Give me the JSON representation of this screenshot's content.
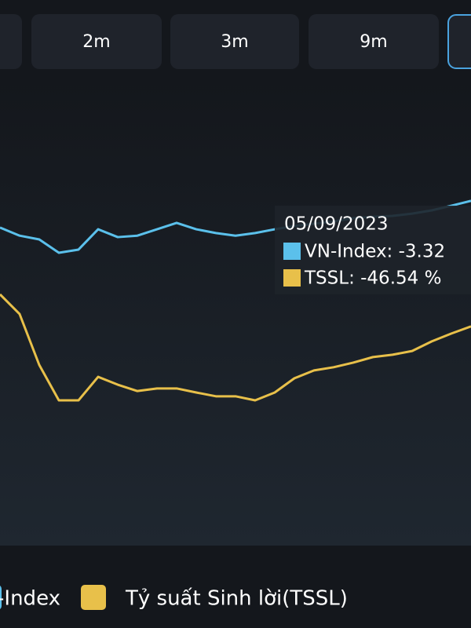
{
  "tabs": [
    "2m",
    "3m",
    "9m"
  ],
  "chart_data": {
    "type": "line",
    "ylim": [
      -122,
      38
    ],
    "series": [
      {
        "name": "VN-Index",
        "color": "#5bc0eb",
        "values": [
          -12.5,
          -15.3,
          -16.6,
          -21.2,
          -20.1,
          -13.1,
          -15.8,
          -15.3,
          -13.1,
          -10.9,
          -13.1,
          -14.4,
          -15.3,
          -14.4,
          -13.1,
          -12.0,
          -11.2,
          -10.4,
          -9.3,
          -8.8,
          -8.5,
          -7.7,
          -6.6,
          -5.0,
          -3.32
        ]
      },
      {
        "name": "Tỷ suất Sinh lời(TSSL)",
        "color": "#e8c04a",
        "values": [
          -35.5,
          -42.3,
          -59.8,
          -72.0,
          -72.0,
          -63.9,
          -66.6,
          -68.8,
          -67.9,
          -67.9,
          -69.3,
          -70.6,
          -70.6,
          -72.0,
          -69.3,
          -64.4,
          -61.7,
          -60.6,
          -59.0,
          -57.1,
          -56.3,
          -55.0,
          -51.7,
          -49.0,
          -46.54
        ]
      }
    ],
    "tooltip": {
      "date": "05/09/2023",
      "lines": [
        "VN-Index: -3.32",
        "TSSL: -46.54 %"
      ]
    }
  }
}
